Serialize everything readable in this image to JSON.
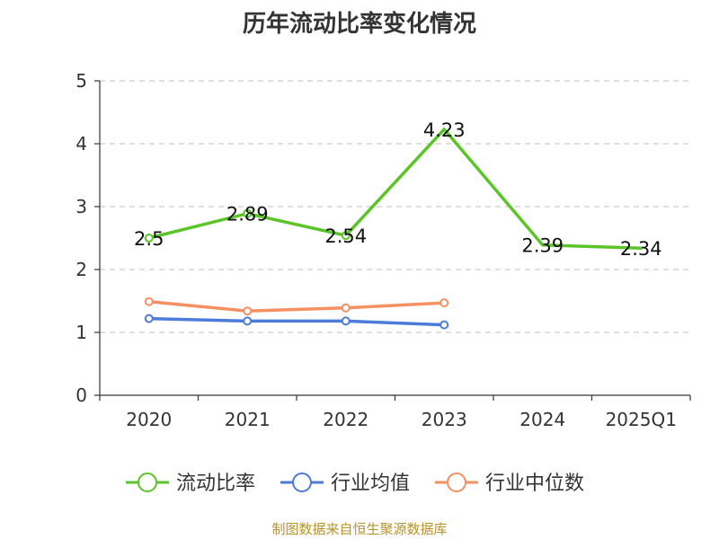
{
  "chart_data": {
    "type": "line",
    "title": "历年流动比率变化情况",
    "categories": [
      "2020",
      "2021",
      "2022",
      "2023",
      "2024",
      "2025Q1"
    ],
    "ylim": [
      0,
      5
    ],
    "yticks": [
      0,
      1,
      2,
      3,
      4,
      5
    ],
    "grid": true,
    "legend_position": "bottom-center",
    "series": [
      {
        "name": "流动比率",
        "color": "#5bc428",
        "values": [
          2.5,
          2.89,
          2.54,
          4.23,
          2.39,
          2.34
        ],
        "labels": [
          "2.5",
          "2.89",
          "2.54",
          "4.23",
          "2.39",
          "2.34"
        ],
        "markers": [
          true,
          true,
          true,
          false,
          false,
          false
        ]
      },
      {
        "name": "行业均值",
        "color": "#4c7bd9",
        "values": [
          1.22,
          1.18,
          1.18,
          1.12,
          null,
          null
        ],
        "markers": [
          true,
          true,
          true,
          true,
          false,
          false
        ]
      },
      {
        "name": "行业中位数",
        "color": "#f59062",
        "values": [
          1.49,
          1.34,
          1.39,
          1.47,
          null,
          null
        ],
        "markers": [
          true,
          true,
          true,
          true,
          false,
          false
        ]
      }
    ]
  },
  "footer": "制图数据来自恒生聚源数据库"
}
